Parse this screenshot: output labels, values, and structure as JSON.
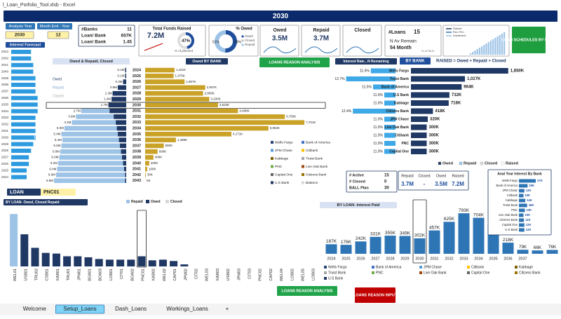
{
  "window": {
    "title": "l_Loan_Porfolio_Tool.xlsb - Excel"
  },
  "header": {
    "year": "2030"
  },
  "controls": {
    "analysis_year_button": "Analysis Year",
    "month_end_button": "Month End - Year",
    "year": "2030",
    "month": "12"
  },
  "bank_stats": {
    "rows": [
      [
        "#Banks",
        "11"
      ],
      [
        "Loan/ Bank",
        "657K"
      ],
      [
        "Loan/ Bank",
        "1.45"
      ]
    ]
  },
  "funds": {
    "title": "Total Funds Raised",
    "value": "7.2M",
    "percent": 47,
    "percent_label": "47%",
    "caption": "% of planned",
    "color": "#1f4e9c"
  },
  "owed_donut": {
    "title": "% Owed",
    "slices": [
      {
        "name": "Owed",
        "value": 51,
        "label": "51%",
        "color": "#1f4e9c"
      },
      {
        "name": "Repaid",
        "value": 49,
        "label": "49%",
        "color": "#9dc3e6"
      }
    ],
    "legend": [
      {
        "name": "Owed",
        "color": "#1f4e9c"
      },
      {
        "name": "Closed",
        "color": "#bfbfbf"
      },
      {
        "name": "Repaid",
        "color": "#9dc3e6"
      }
    ]
  },
  "kpi_cards": [
    {
      "title": "Owed",
      "value": "3.5M"
    },
    {
      "title": "Repaid",
      "value": "3.7M"
    },
    {
      "title": "Closed"
    }
  ],
  "loans_card": {
    "label": "#Loans",
    "count": "15",
    "remain_label": "N Av Remain",
    "remain": "54 Month",
    "pct_label": "% of Tot N"
  },
  "schedule_legend": [
    "Raised",
    "Rec-Prin",
    "Instalment"
  ],
  "buttons": {
    "schedules": "LOAN SCHEDULES BY LOAN",
    "reason_top": "LOANS REASON ANALYSIS",
    "reason_bottom": "LOANS REASON ANALYSIS",
    "reason_input": "LOANS REASON INPUT"
  },
  "interest_forecast": {
    "title": "Interest Forecast",
    "color": "#2e9be0",
    "categories": [
      2043,
      2042,
      2041,
      2040,
      2039,
      2038,
      2037,
      2036,
      2035,
      2034,
      2033,
      2032,
      2031,
      2030,
      2029,
      2028,
      2027,
      2026,
      2025,
      2024
    ],
    "values": [
      9,
      9,
      10,
      10,
      11,
      11,
      11,
      12,
      12,
      12,
      11,
      11,
      11,
      11.1,
      10,
      9,
      8,
      8,
      7,
      7
    ],
    "value_labels": [
      null,
      null,
      null,
      null,
      null,
      null,
      null,
      null,
      null,
      null,
      null,
      null,
      null,
      "11.1%",
      null,
      null,
      null,
      null,
      null,
      null
    ],
    "xlim": [
      0,
      14
    ]
  },
  "owed_repaid": {
    "title": "Owed & Repaid, Closed",
    "legend_extra": "Closed",
    "categories": [
      2024,
      2025,
      2026,
      2027,
      2028,
      2029,
      2030,
      2031,
      2032,
      2033,
      2034,
      2035,
      2036,
      2037,
      2038,
      2039,
      2040,
      2041,
      2042,
      2043
    ],
    "xlim": [
      0,
      7.5
    ],
    "series": [
      {
        "name": "Owed",
        "color": "#1f3864",
        "values": [
          0.1,
          0.1,
          0.3,
          0.8,
          1.3,
          1.4,
          1.7,
          1.6,
          1.2,
          1.0,
          0.9,
          0.8,
          0.7,
          0.6,
          0.5,
          0.4,
          0.3,
          0.2,
          0.1,
          0.1
        ],
        "value_labels": [
          "0.1M",
          "0.1M",
          "0.3M",
          "0.8M",
          "1.3M",
          "1.4M",
          "1.7M",
          "1.6M",
          "1.2M",
          "1.0M",
          "0.9M",
          "0.8M",
          "0.7M",
          "0.6M",
          "0.5M",
          "0.4M",
          "0.3M",
          "0.2M",
          "0.1M",
          "0.1M"
        ]
      },
      {
        "name": "Repaid",
        "color": "#9dc3e6",
        "values": [
          0,
          0,
          0,
          0,
          0,
          0,
          0,
          2.7,
          3.6,
          4.2,
          5.0,
          5.4,
          5.4,
          5.6,
          5.8,
          6.0,
          6.2,
          6.4,
          6.6,
          6.8
        ],
        "value_labels": [
          null,
          null,
          null,
          null,
          null,
          null,
          null,
          "2.7M",
          "3.6M",
          "4.2M",
          "5.0M",
          "5.4M",
          "5.4M",
          "5.6M",
          "5.8M",
          "6.0M",
          "6.2M",
          "6.4M",
          "6.6M",
          "6.8M"
        ]
      }
    ]
  },
  "owed_by_bank": {
    "title": "Owed BY BANK",
    "color": "#c9a227",
    "xlim": [
      0,
      7800
    ],
    "values": [
      1421,
      1375,
      1907,
      2907,
      2800,
      3100,
      3523,
      4488,
      6755,
      7701,
      5962,
      4171,
      1486,
      900,
      600,
      400,
      200,
      100,
      30,
      5
    ],
    "value_labels": [
      "1,421K",
      "1,375K",
      "1,907K",
      "2,907K",
      "2,800K",
      "3,100K",
      "3,523K",
      "4,488K",
      "6,755K",
      "7,701K",
      "5,962K",
      "4,171K",
      "1,486K",
      "900K",
      "600K",
      "400K",
      "200K",
      "100K",
      "30K",
      "5K"
    ]
  },
  "bank_legend": [
    {
      "name": "Wells Fargo",
      "color": "#264478"
    },
    {
      "name": "Bank of America",
      "color": "#4472c4"
    },
    {
      "name": "JPM Chase",
      "color": "#5b9bd5"
    },
    {
      "name": "Citibank",
      "color": "#ffc000"
    },
    {
      "name": "Kabbage",
      "color": "#7f6000"
    },
    {
      "name": "Truist Bank",
      "color": "#a5a5a5"
    },
    {
      "name": "PNC",
      "color": "#70ad47"
    },
    {
      "name": "Live Oak Bank",
      "color": "#9e480e"
    },
    {
      "name": "Capital One",
      "color": "#636363"
    },
    {
      "name": "Citizens Bank",
      "color": "#997300"
    },
    {
      "name": "U.S Bank",
      "color": "#1f3864"
    },
    {
      "name": "Balance",
      "color": "#d9d9d9"
    }
  ],
  "interest_rate": {
    "title": "Interest Rate , N Remaining",
    "color": "#3fa9e8",
    "xlim": [
      10.5,
      13
    ],
    "values": [
      11.6,
      12.7,
      11.5,
      11.0,
      11.0,
      12.4,
      11.0,
      11.0,
      11.0,
      11.0,
      11.0
    ],
    "value_labels": [
      "11.6%",
      "12.7%",
      "11.5%",
      "11.0%",
      "11.0%",
      "12.4%",
      "11.0%",
      "11.0%",
      "11.0%",
      "11.0%",
      "11.0%"
    ]
  },
  "by_bank": {
    "title": "BY BANK",
    "subtitle": "RAISED = Owed + Repaid + Closed",
    "color": "#1f3864",
    "xlim": [
      0,
      2000
    ],
    "categories": [
      "Wells Fargo",
      "Truist Bank",
      "Bank of America",
      "U.S Bank",
      "Kabbage",
      "Citizens Bank",
      "JPM Chase",
      "Live Oak Bank",
      "Citibank",
      "PNC",
      "Capital One"
    ],
    "values": [
      1850,
      1027,
      964,
      732,
      718,
      418,
      320,
      300,
      300,
      300,
      300
    ],
    "value_labels": [
      "1,850K",
      "1,027K",
      "964K",
      "732K",
      "718K",
      "418K",
      "320K",
      "300K",
      "300K",
      "300K",
      "300K"
    ],
    "legend": [
      {
        "name": "Owed",
        "color": "#1f3864"
      },
      {
        "name": "Repaid",
        "color": "#9dc3e6"
      },
      {
        "name": "Closed",
        "color": "#d9d9d9"
      },
      {
        "name": "Raised",
        "color": "#ffffff"
      }
    ]
  },
  "status_box": {
    "rows": [
      [
        "# Active",
        15
      ],
      [
        "# Closed",
        0
      ],
      [
        "BALL Plan",
        30
      ]
    ]
  },
  "totals_box": {
    "headers": [
      "Repaid",
      "Closed",
      "Owed",
      "Raised"
    ],
    "values": [
      "3.7M",
      "-",
      "3.5M",
      "7.2M"
    ]
  },
  "annual_interest": {
    "title": "Anal Year Interest By Bank",
    "color": "#2e75b6",
    "xlim": [
      0,
      40
    ],
    "categories": [
      "Wells Fargo",
      "Bank of America",
      "JPM Chase",
      "Citibank",
      "Kabbage",
      "Truist Bank",
      "PNC",
      "Live Oak Bank",
      "Citizens Bank",
      "Capital One",
      "U.S Bank"
    ],
    "values": [
      37,
      19,
      12,
      10,
      14,
      18,
      13,
      10,
      11,
      12,
      12
    ],
    "value_labels": [
      "37K",
      "19K",
      "12K",
      "10K",
      "14K",
      "18K",
      "13K",
      "10K",
      "11K",
      "12K",
      "12K"
    ]
  },
  "loan_selector": {
    "label": "LOAN",
    "value": "PNC01"
  },
  "by_loan": {
    "title": "BY LOAN- Owed, Closed Repaid",
    "legend_extra": "Closed",
    "ylim": [
      0,
      1.7
    ],
    "categories": [
      "WEL01",
      "USB01",
      "TRU02",
      "CSB01",
      "KAB01",
      "TRU01",
      "JPM01",
      "BOA01",
      "BOA03",
      "LOB01",
      "CIT01",
      "BOA02",
      "PNC01",
      "KAB02",
      "WEL02",
      "CAP01",
      "JPM02",
      "CIT02",
      "WEL03",
      "KAB03",
      "USB02",
      "JPM03",
      "CIT03",
      "PNC02",
      "CAP02",
      "WEL04",
      "LOB02",
      "WEL05",
      "LOB03"
    ],
    "series": [
      {
        "name": "Repaid",
        "color": "#9dc3e6",
        "values": [
          1.55,
          0,
          0,
          0,
          0,
          0,
          0,
          0,
          0,
          0,
          0,
          0,
          0,
          0,
          0,
          0,
          0,
          0,
          0,
          0,
          0,
          0,
          0,
          0,
          0,
          0,
          0,
          0,
          0
        ]
      },
      {
        "name": "Owed",
        "color": "#1f3864",
        "values": [
          0,
          0.95,
          0.55,
          0.4,
          0.38,
          0.3,
          0.3,
          0.27,
          0.22,
          0.2,
          0.2,
          0.2,
          0.3,
          0.18,
          0.2,
          0.16,
          0.06,
          0,
          0,
          0,
          0,
          0,
          0,
          0,
          0,
          0,
          0,
          0,
          0
        ]
      }
    ]
  },
  "interest_paid": {
    "title": "BY LOAN- Interest Paid",
    "color": "#2e75b6",
    "ylim": [
      0,
      850
    ],
    "categories": [
      2024,
      2025,
      2026,
      2027,
      2028,
      2029,
      2030,
      2031,
      2032,
      2033,
      2034,
      2035,
      2036,
      2037,
      null,
      null
    ],
    "values": [
      187,
      176,
      242,
      331,
      355,
      349,
      302,
      457,
      625,
      793,
      704,
      565,
      218,
      79,
      66,
      76
    ],
    "value_labels": [
      "187K",
      "176K",
      "242K",
      "331K",
      "355K",
      "349K",
      "302K",
      "457K",
      "625K",
      "793K",
      "704K",
      "565K",
      "218K",
      "79K",
      "66K",
      "76K"
    ]
  },
  "sheet_tabs": [
    "Welcome",
    "Setup_Loans",
    "Dash_Loans",
    "Workings_Loans",
    "+"
  ]
}
